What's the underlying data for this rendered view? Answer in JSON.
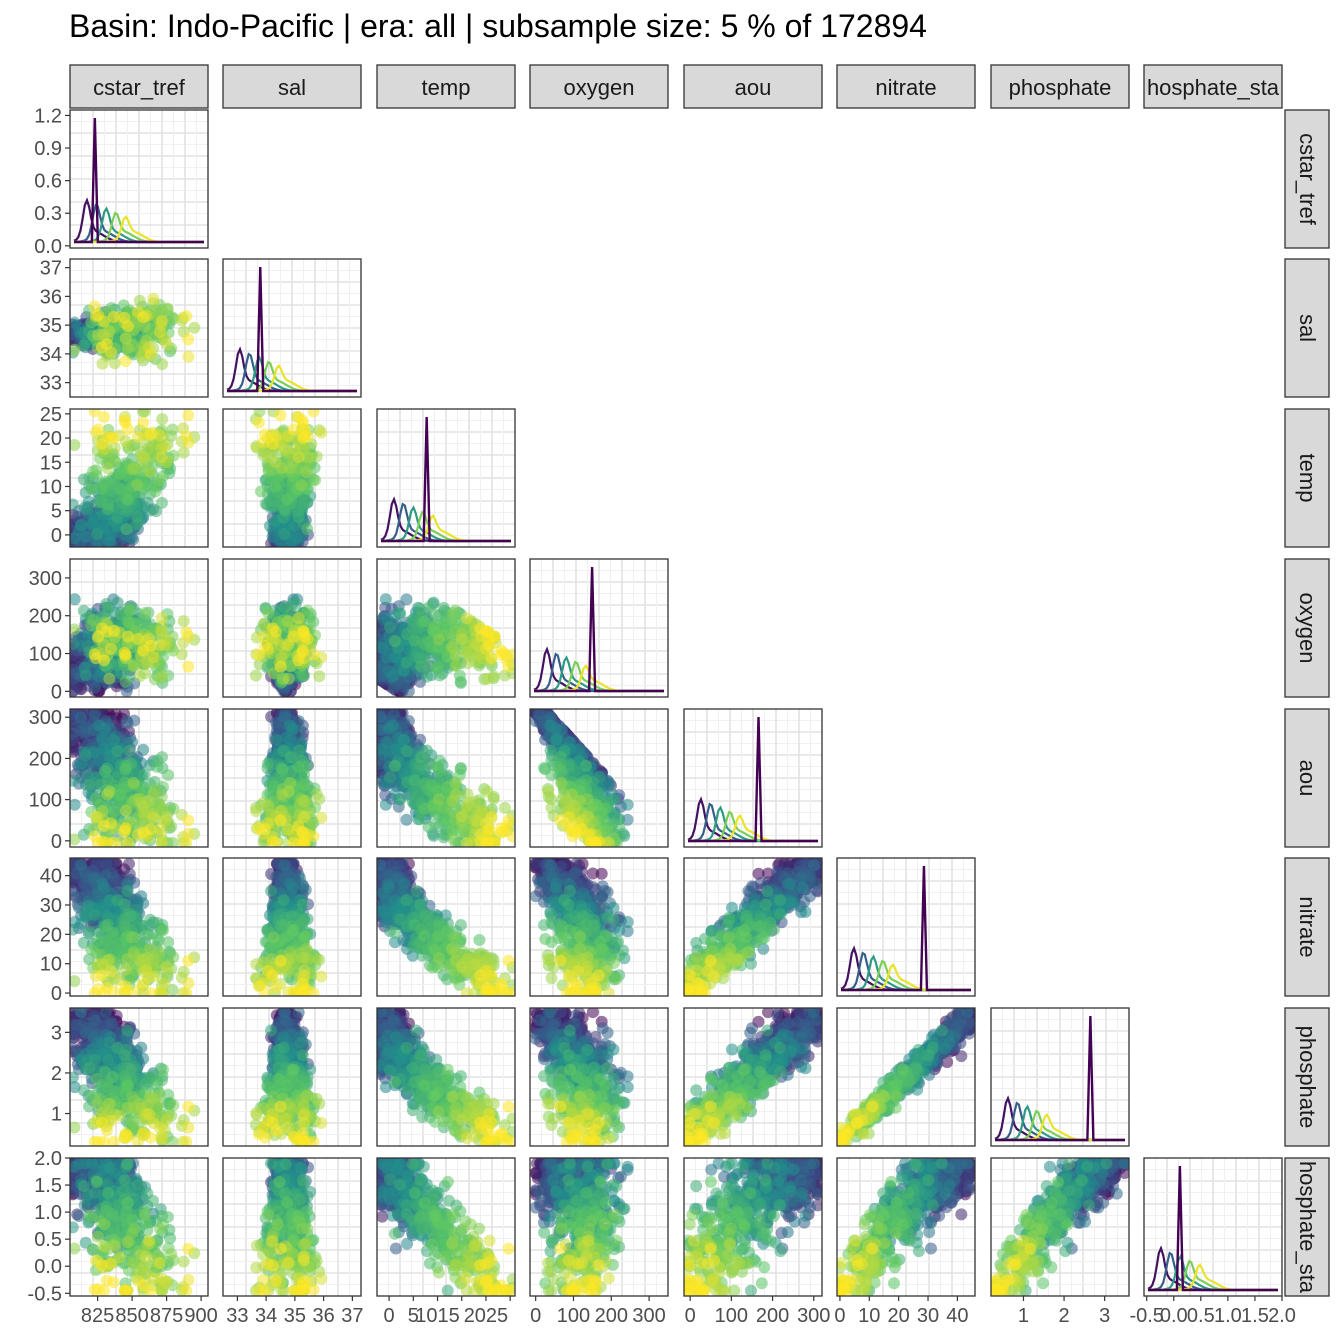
{
  "title": "Basin: Indo-Pacific | era: all | subsample size: 5 % of 172894",
  "chart_data": {
    "type": "scatter-matrix",
    "variables": [
      "cstar_tref",
      "sal",
      "temp",
      "oxygen",
      "aou",
      "nitrate",
      "phosphate",
      "phosphate_star"
    ],
    "strip_labels": [
      "cstar_tref",
      "sal",
      "temp",
      "oxygen",
      "aou",
      "nitrate",
      "phosphate",
      "hosphate_sta"
    ],
    "row_strip_labels": [
      "cstar_tref",
      "sal",
      "temp",
      "oxygen",
      "aou",
      "nitrate",
      "phosphate",
      "hosphate_sta"
    ],
    "x_ticks": [
      [
        "825",
        "850",
        "875",
        "900"
      ],
      [
        "33",
        "34",
        "35",
        "36",
        "37"
      ],
      [
        "0",
        "5",
        "10",
        "15",
        "20",
        "25"
      ],
      [
        "0",
        "100",
        "200",
        "300"
      ],
      [
        "0",
        "100",
        "200",
        "300"
      ],
      [
        "0",
        "10",
        "20",
        "30",
        "40"
      ],
      [
        "1",
        "2",
        "3"
      ],
      [
        "-0.5",
        "0.0",
        "0.5",
        "1.0",
        "1.5",
        "2.0"
      ]
    ],
    "x_tick_labels_raw": [
      [
        "825",
        "850",
        "875",
        "900"
      ],
      [
        "33",
        "34",
        "35",
        "36",
        "37"
      ],
      [
        "0",
        "5",
        "1015",
        "",
        "2025",
        ""
      ],
      [
        "0",
        "100",
        "200",
        "300"
      ],
      [
        "0",
        "100",
        "200",
        "300"
      ],
      [
        "0",
        "10",
        "20",
        "30",
        "40"
      ],
      [
        "1",
        "2",
        "3"
      ],
      [
        "-0.5",
        "0.0",
        "0.5",
        "1.0",
        "1.5",
        "2.0"
      ]
    ],
    "y_ticks": [
      [
        "0.0",
        "0.3",
        "0.6",
        "0.9",
        "1.2"
      ],
      [
        "33",
        "34",
        "35",
        "36",
        "37"
      ],
      [
        "0",
        "5",
        "10",
        "15",
        "20",
        "25"
      ],
      [
        "0",
        "100",
        "200",
        "300"
      ],
      [
        "0",
        "100",
        "200",
        "300"
      ],
      [
        "0",
        "10",
        "20",
        "30",
        "40"
      ],
      [
        "1",
        "2",
        "3"
      ],
      [
        "-0.5",
        "0.0",
        "0.5",
        "1.0",
        "1.5",
        "2.0"
      ]
    ],
    "colormap": "viridis",
    "palette": [
      "#440154",
      "#3b528b",
      "#21908c",
      "#5dc863",
      "#fde725"
    ],
    "diagonal": "density",
    "lower": "scatter",
    "upper": "blank",
    "grid": true
  }
}
